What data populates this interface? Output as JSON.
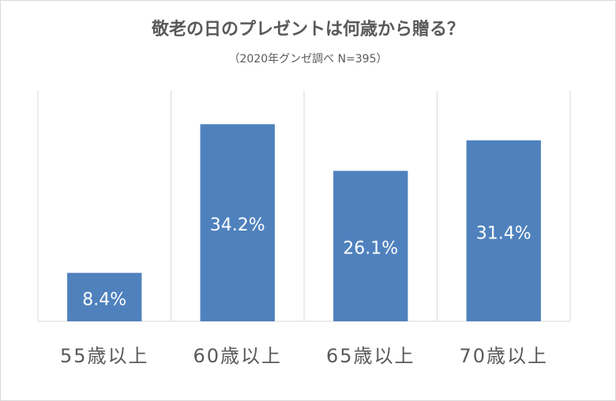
{
  "chart_data": {
    "type": "bar",
    "title": "敬老の日のプレゼントは何歳から贈る？",
    "subtitle": "（2020年グンゼ調べ N=395）",
    "categories": [
      "55歳以上",
      "60歳以上",
      "65歳以上",
      "70歳以上"
    ],
    "values": [
      8.4,
      34.2,
      26.1,
      31.4
    ],
    "value_labels": [
      "8.4%",
      "34.2%",
      "26.1%",
      "31.4%"
    ],
    "color": "#4f81bd",
    "ylim": [
      0,
      40
    ],
    "grid": true
  }
}
